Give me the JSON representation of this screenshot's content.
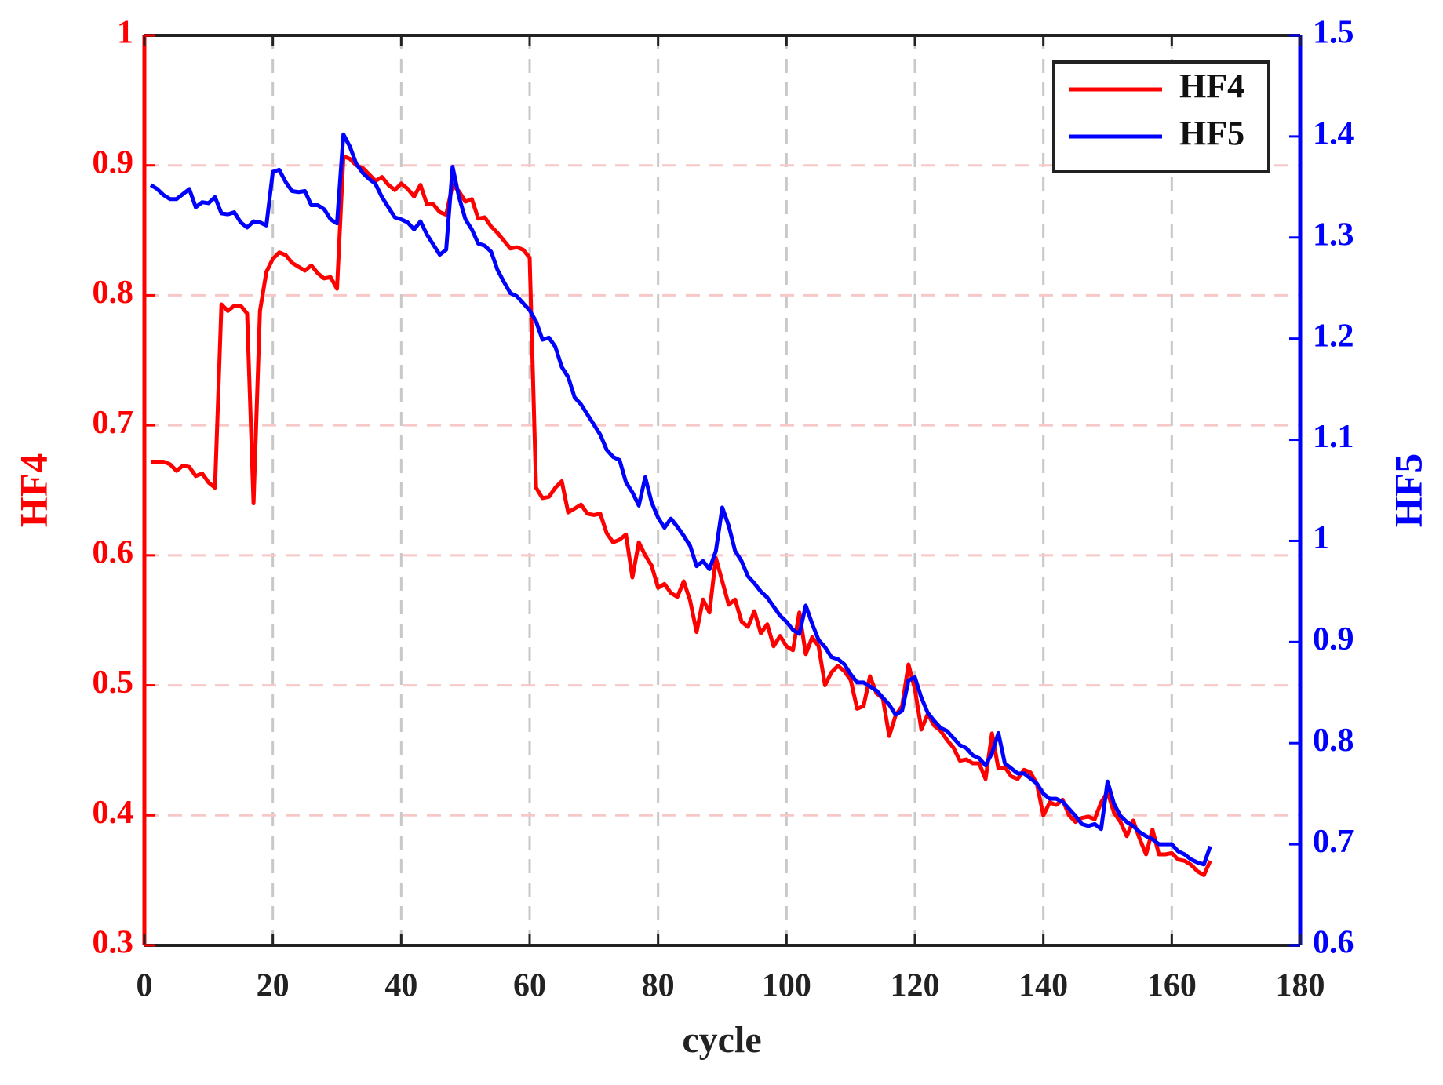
{
  "chart_data": {
    "type": "line",
    "xlabel": "cycle",
    "ylabel": "HF4",
    "y2label": "HF5",
    "x": [
      1,
      2,
      3,
      4,
      5,
      6,
      7,
      8,
      9,
      10,
      11,
      12,
      13,
      14,
      15,
      16,
      17,
      18,
      19,
      20,
      21,
      22,
      23,
      24,
      25,
      26,
      27,
      28,
      29,
      30,
      31,
      32,
      33,
      34,
      35,
      36,
      37,
      38,
      39,
      40,
      41,
      42,
      43,
      44,
      45,
      46,
      47,
      48,
      49,
      50,
      51,
      52,
      53,
      54,
      55,
      56,
      57,
      58,
      59,
      60,
      61,
      62,
      63,
      64,
      65,
      66,
      67,
      68,
      69,
      70,
      71,
      72,
      73,
      74,
      75,
      76,
      77,
      78,
      79,
      80,
      81,
      82,
      83,
      84,
      85,
      86,
      87,
      88,
      89,
      90,
      91,
      92,
      93,
      94,
      95,
      96,
      97,
      98,
      99,
      100,
      101,
      102,
      103,
      104,
      105,
      106,
      107,
      108,
      109,
      110,
      111,
      112,
      113,
      114,
      115,
      116,
      117,
      118,
      119,
      120,
      121,
      122,
      123,
      124,
      125,
      126,
      127,
      128,
      129,
      130,
      131,
      132,
      133,
      134,
      135,
      136,
      137,
      138,
      139,
      140,
      141,
      142,
      143,
      144,
      145,
      146,
      147,
      148,
      149,
      150,
      151,
      152,
      153,
      154,
      155,
      156,
      157,
      158,
      159,
      160,
      161,
      162,
      163,
      164,
      165,
      166
    ],
    "series": [
      {
        "name": "HF4",
        "color": "#ff0000",
        "axis": "y",
        "values": [
          0.672,
          0.672,
          0.672,
          0.67,
          0.665,
          0.669,
          0.668,
          0.661,
          0.663,
          0.656,
          0.652,
          0.793,
          0.788,
          0.792,
          0.792,
          0.786,
          0.64,
          0.788,
          0.818,
          0.828,
          0.833,
          0.831,
          0.825,
          0.822,
          0.819,
          0.823,
          0.817,
          0.813,
          0.814,
          0.805,
          0.907,
          0.905,
          0.9,
          0.898,
          0.893,
          0.888,
          0.891,
          0.885,
          0.881,
          0.886,
          0.882,
          0.876,
          0.885,
          0.87,
          0.87,
          0.864,
          0.862,
          0.885,
          0.88,
          0.872,
          0.874,
          0.859,
          0.86,
          0.853,
          0.848,
          0.842,
          0.836,
          0.837,
          0.835,
          0.829,
          0.652,
          0.644,
          0.645,
          0.652,
          0.657,
          0.633,
          0.636,
          0.639,
          0.632,
          0.631,
          0.632,
          0.617,
          0.61,
          0.612,
          0.616,
          0.583,
          0.61,
          0.6,
          0.592,
          0.575,
          0.578,
          0.571,
          0.568,
          0.58,
          0.565,
          0.541,
          0.566,
          0.556,
          0.598,
          0.58,
          0.562,
          0.566,
          0.549,
          0.545,
          0.557,
          0.54,
          0.547,
          0.53,
          0.538,
          0.53,
          0.527,
          0.556,
          0.524,
          0.537,
          0.53,
          0.5,
          0.51,
          0.515,
          0.511,
          0.504,
          0.482,
          0.484,
          0.507,
          0.494,
          0.49,
          0.461,
          0.477,
          0.484,
          0.516,
          0.497,
          0.466,
          0.478,
          0.469,
          0.465,
          0.458,
          0.452,
          0.442,
          0.443,
          0.44,
          0.44,
          0.428,
          0.463,
          0.436,
          0.437,
          0.43,
          0.428,
          0.435,
          0.433,
          0.424,
          0.4,
          0.41,
          0.408,
          0.412,
          0.4,
          0.395,
          0.398,
          0.399,
          0.397,
          0.41,
          0.418,
          0.402,
          0.395,
          0.384,
          0.396,
          0.382,
          0.37,
          0.389,
          0.37,
          0.37,
          0.371,
          0.366,
          0.365,
          0.362,
          0.357,
          0.354,
          0.365
        ]
      },
      {
        "name": "HF5",
        "color": "#0000ff",
        "axis": "y2",
        "values": [
          1.352,
          1.348,
          1.342,
          1.338,
          1.338,
          1.343,
          1.348,
          1.33,
          1.335,
          1.334,
          1.34,
          1.324,
          1.323,
          1.325,
          1.315,
          1.31,
          1.316,
          1.315,
          1.312,
          1.365,
          1.367,
          1.355,
          1.346,
          1.345,
          1.346,
          1.332,
          1.332,
          1.328,
          1.318,
          1.314,
          1.402,
          1.39,
          1.373,
          1.364,
          1.358,
          1.353,
          1.34,
          1.33,
          1.32,
          1.318,
          1.315,
          1.308,
          1.316,
          1.303,
          1.293,
          1.283,
          1.288,
          1.37,
          1.34,
          1.318,
          1.308,
          1.294,
          1.292,
          1.286,
          1.268,
          1.256,
          1.245,
          1.242,
          1.235,
          1.228,
          1.217,
          1.199,
          1.201,
          1.192,
          1.172,
          1.162,
          1.142,
          1.135,
          1.125,
          1.115,
          1.105,
          1.09,
          1.083,
          1.08,
          1.058,
          1.048,
          1.035,
          1.063,
          1.038,
          1.023,
          1.013,
          1.022,
          1.014,
          1.005,
          0.995,
          0.975,
          0.98,
          0.972,
          0.99,
          1.033,
          1.015,
          0.99,
          0.98,
          0.965,
          0.958,
          0.95,
          0.944,
          0.935,
          0.926,
          0.92,
          0.912,
          0.908,
          0.936,
          0.918,
          0.902,
          0.895,
          0.885,
          0.883,
          0.878,
          0.868,
          0.86,
          0.86,
          0.856,
          0.852,
          0.845,
          0.838,
          0.828,
          0.832,
          0.862,
          0.865,
          0.845,
          0.83,
          0.822,
          0.815,
          0.812,
          0.805,
          0.798,
          0.795,
          0.788,
          0.785,
          0.778,
          0.79,
          0.81,
          0.78,
          0.775,
          0.77,
          0.77,
          0.765,
          0.76,
          0.75,
          0.745,
          0.745,
          0.742,
          0.735,
          0.728,
          0.72,
          0.718,
          0.72,
          0.715,
          0.762,
          0.74,
          0.728,
          0.722,
          0.718,
          0.712,
          0.708,
          0.705,
          0.7,
          0.7,
          0.7,
          0.693,
          0.69,
          0.685,
          0.682,
          0.68,
          0.698
        ]
      }
    ],
    "xlim": [
      0,
      180
    ],
    "xticks": [
      0,
      20,
      40,
      60,
      80,
      100,
      120,
      140,
      160,
      180
    ],
    "ylim": [
      0.3,
      1
    ],
    "yticks": [
      0.3,
      0.4,
      0.5,
      0.6,
      0.7,
      0.8,
      0.9,
      1
    ],
    "y2lim": [
      0.6,
      1.5
    ],
    "y2ticks": [
      0.6,
      0.7,
      0.8,
      0.9,
      1,
      1.1,
      1.2,
      1.3,
      1.4,
      1.5
    ],
    "grid": true,
    "legend": "upper right"
  }
}
